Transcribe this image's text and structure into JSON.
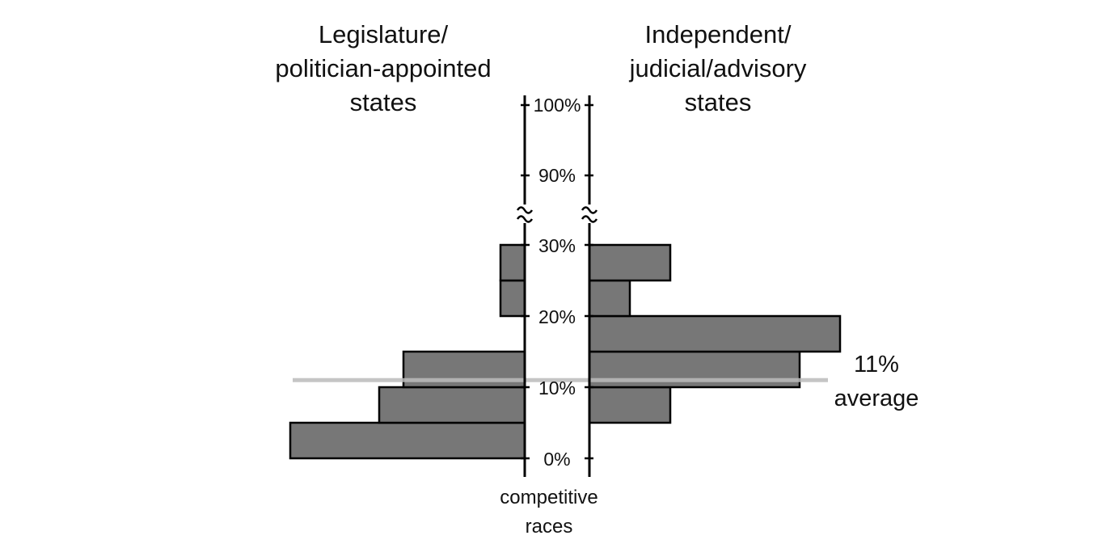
{
  "chart_data": {
    "type": "bar",
    "orientation": "horizontal-back-to-back",
    "left_panel": {
      "title_lines": [
        "Legislature/",
        "politician-appointed",
        "states"
      ],
      "bins": [
        {
          "range": [
            0,
            5
          ],
          "value": 29
        },
        {
          "range": [
            5,
            10
          ],
          "value": 18
        },
        {
          "range": [
            10,
            15
          ],
          "value": 15
        },
        {
          "range": [
            20,
            25
          ],
          "value": 3
        },
        {
          "range": [
            25,
            30
          ],
          "value": 3
        }
      ]
    },
    "right_panel": {
      "title_lines": [
        "Independent/",
        "judicial/advisory",
        "states"
      ],
      "bins": [
        {
          "range": [
            5,
            10
          ],
          "value": 10
        },
        {
          "range": [
            10,
            15
          ],
          "value": 26
        },
        {
          "range": [
            15,
            20
          ],
          "value": 31
        },
        {
          "range": [
            20,
            25
          ],
          "value": 5
        },
        {
          "range": [
            25,
            30
          ],
          "value": 10
        }
      ]
    },
    "y_ticks": [
      "0%",
      "10%",
      "20%",
      "30%",
      "90%",
      "100%"
    ],
    "y_axis_break": "30% to 90%",
    "ylabel_lines": [
      "competitive",
      "races"
    ],
    "average": {
      "value": 11,
      "label_lines": [
        "11%",
        "average"
      ],
      "color": "#bbbbbb"
    },
    "bar_fill": "#777777",
    "bar_stroke": "#000000",
    "grid": false,
    "legend": "none"
  }
}
